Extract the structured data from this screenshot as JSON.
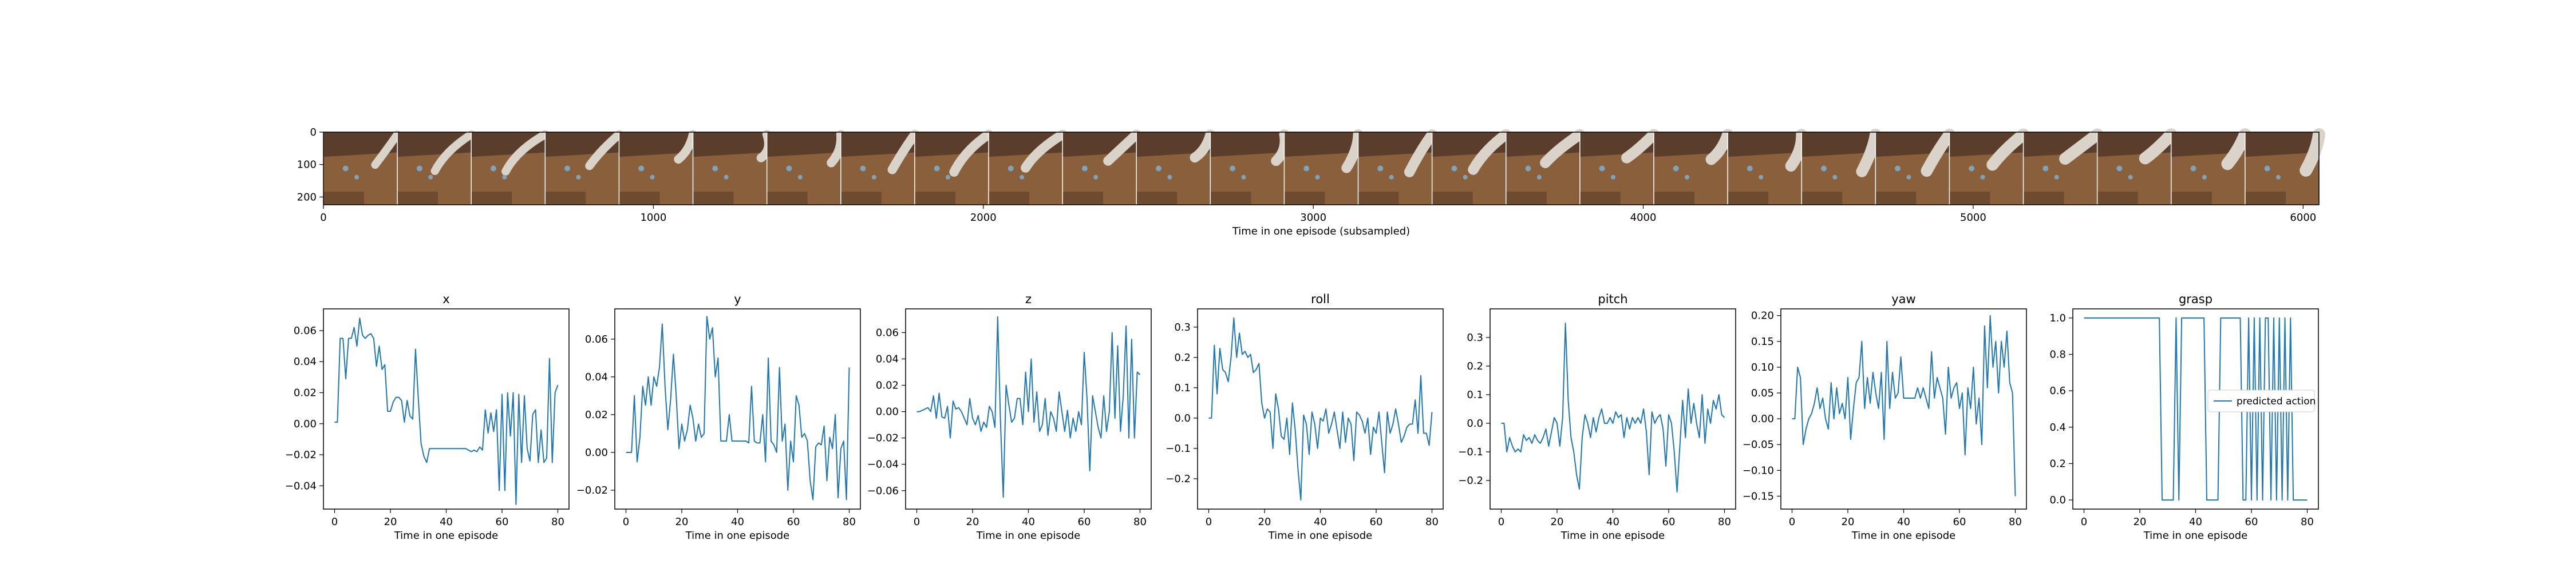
{
  "colors": {
    "series": "#1f77b4",
    "axes": "#000000",
    "background": "#ffffff",
    "legend_border": "#cccccc",
    "filmstrip_wall": "#5a3e2b",
    "filmstrip_table": "#8a5f3c",
    "filmstrip_table_dark": "#6e4a2e",
    "filmstrip_robot": "#d9d3c9",
    "filmstrip_object": "#7fa3b8"
  },
  "image_strip": {
    "type": "image",
    "xlabel": "Time in one episode (subsampled)",
    "x_ticks": [
      "0",
      "1000",
      "2000",
      "3000",
      "4000",
      "5000",
      "6000"
    ],
    "y_ticks": [
      "0",
      "100",
      "200"
    ],
    "xlim": [
      0,
      6048
    ],
    "ylim": [
      224,
      0
    ],
    "frame_count": 27,
    "frame_width": 224
  },
  "chart_data": [
    {
      "type": "line",
      "title": "x",
      "xlabel": "Time in one episode",
      "x_ticks": [
        "0",
        "20",
        "40",
        "60",
        "80"
      ],
      "y_ticks": [
        "−0.04",
        "−0.02",
        "0.00",
        "0.02",
        "0.04",
        "0.06"
      ],
      "y_tick_values": [
        -0.04,
        -0.02,
        0.0,
        0.02,
        0.04,
        0.06
      ],
      "xlim": [
        -4,
        84
      ],
      "ylim": [
        -0.055,
        0.074
      ],
      "values": [
        0.001,
        0.001,
        0.055,
        0.055,
        0.029,
        0.055,
        0.055,
        0.062,
        0.05,
        0.068,
        0.057,
        0.055,
        0.057,
        0.058,
        0.055,
        0.037,
        0.05,
        0.035,
        0.038,
        0.008,
        0.008,
        0.014,
        0.017,
        0.017,
        0.015,
        0.001,
        0.015,
        0.005,
        0.003,
        0.048,
        0.016,
        -0.013,
        -0.021,
        -0.025,
        -0.016,
        -0.016,
        -0.016,
        -0.016,
        -0.016,
        -0.016,
        -0.016,
        -0.016,
        -0.016,
        -0.016,
        -0.016,
        -0.016,
        -0.016,
        -0.016,
        -0.017,
        -0.018,
        -0.017,
        -0.018,
        -0.015,
        -0.017,
        0.009,
        -0.006,
        0.007,
        -0.005,
        0.009,
        -0.043,
        0.019,
        -0.043,
        0.02,
        -0.008,
        0.02,
        -0.052,
        0.019,
        -0.025,
        0.018,
        -0.016,
        -0.024,
        0.006,
        0.009,
        -0.025,
        -0.004,
        -0.025,
        -0.022,
        0.042,
        -0.025,
        0.02,
        0.025
      ]
    },
    {
      "type": "line",
      "title": "y",
      "xlabel": "Time in one episode",
      "x_ticks": [
        "0",
        "20",
        "40",
        "60",
        "80"
      ],
      "y_ticks": [
        "−0.02",
        "0.00",
        "0.02",
        "0.04",
        "0.06"
      ],
      "y_tick_values": [
        -0.02,
        0.0,
        0.02,
        0.04,
        0.06
      ],
      "xlim": [
        -4,
        84
      ],
      "ylim": [
        -0.03,
        0.076
      ],
      "values": [
        0.0,
        0.0,
        0.0,
        0.03,
        -0.005,
        0.008,
        0.035,
        0.025,
        0.04,
        0.025,
        0.04,
        0.035,
        0.045,
        0.068,
        0.035,
        0.012,
        0.028,
        0.052,
        0.03,
        0.002,
        0.015,
        0.006,
        0.012,
        0.025,
        0.018,
        0.006,
        0.015,
        0.008,
        0.01,
        0.072,
        0.06,
        0.066,
        0.04,
        0.05,
        0.006,
        0.006,
        0.006,
        0.02,
        0.006,
        0.006,
        0.006,
        0.006,
        0.006,
        0.006,
        0.005,
        0.035,
        0.006,
        0.005,
        0.005,
        0.02,
        -0.005,
        0.05,
        0.006,
        0.004,
        0.0,
        0.045,
        0.006,
        0.015,
        -0.02,
        0.006,
        -0.005,
        0.03,
        0.025,
        0.008,
        0.01,
        0.006,
        -0.015,
        -0.025,
        0.003,
        0.005,
        0.004,
        0.014,
        -0.015,
        0.008,
        0.002,
        0.02,
        -0.024,
        0.002,
        0.006,
        -0.025,
        0.045
      ]
    },
    {
      "type": "line",
      "title": "z",
      "xlabel": "Time in one episode",
      "x_ticks": [
        "0",
        "20",
        "40",
        "60",
        "80"
      ],
      "y_ticks": [
        "−0.06",
        "−0.04",
        "−0.02",
        "0.00",
        "0.02",
        "0.04",
        "0.06"
      ],
      "y_tick_values": [
        -0.06,
        -0.04,
        -0.02,
        0.0,
        0.02,
        0.04,
        0.06
      ],
      "xlim": [
        -4,
        84
      ],
      "ylim": [
        -0.074,
        0.078
      ],
      "values": [
        0.0,
        0.0,
        0.001,
        0.002,
        0.003,
        0.0,
        0.012,
        -0.005,
        0.014,
        -0.004,
        -0.005,
        0.004,
        -0.02,
        0.008,
        0.002,
        0.003,
        0.0,
        -0.005,
        -0.01,
        0.01,
        -0.005,
        -0.01,
        -0.003,
        -0.015,
        -0.008,
        -0.012,
        0.004,
        0.0,
        -0.012,
        0.072,
        -0.008,
        -0.065,
        0.02,
        0.005,
        -0.008,
        -0.005,
        0.01,
        0.01,
        -0.01,
        0.03,
        0.0,
        0.04,
        -0.008,
        0.015,
        -0.015,
        -0.01,
        0.01,
        -0.018,
        0.0,
        -0.005,
        -0.015,
        0.015,
        0.0,
        -0.015,
        0.001,
        -0.02,
        -0.005,
        -0.015,
        0.0,
        -0.01,
        0.045,
        0.01,
        -0.045,
        0.012,
        0.0,
        -0.012,
        -0.02,
        0.012,
        -0.015,
        0.0,
        0.06,
        -0.005,
        0.05,
        -0.015,
        0.012,
        0.065,
        -0.02,
        0.055,
        -0.02,
        0.03,
        0.028
      ]
    },
    {
      "type": "line",
      "title": "roll",
      "xlabel": "Time in one episode",
      "x_ticks": [
        "0",
        "20",
        "40",
        "60",
        "80"
      ],
      "y_ticks": [
        "−0.2",
        "−0.1",
        "0.0",
        "0.1",
        "0.2",
        "0.3"
      ],
      "y_tick_values": [
        -0.2,
        -0.1,
        0.0,
        0.1,
        0.2,
        0.3
      ],
      "xlim": [
        -4,
        84
      ],
      "ylim": [
        -0.3,
        0.36
      ],
      "values": [
        0.0,
        0.0,
        0.24,
        0.08,
        0.23,
        0.16,
        0.15,
        0.12,
        0.2,
        0.33,
        0.2,
        0.28,
        0.21,
        0.22,
        0.2,
        0.21,
        0.15,
        0.16,
        0.18,
        0.05,
        0.0,
        0.03,
        0.02,
        -0.1,
        0.08,
        0.03,
        -0.06,
        -0.07,
        0.0,
        -0.12,
        0.05,
        -0.04,
        -0.17,
        -0.27,
        0.01,
        -0.02,
        -0.12,
        0.02,
        -0.02,
        -0.1,
        0.0,
        -0.01,
        0.03,
        -0.05,
        -0.02,
        0.02,
        -0.04,
        -0.1,
        0.02,
        -0.08,
        0.0,
        -0.02,
        -0.14,
        0.02,
        0.01,
        -0.01,
        -0.05,
        0.0,
        -0.12,
        -0.03,
        -0.05,
        0.02,
        -0.08,
        -0.18,
        0.02,
        -0.05,
        -0.02,
        0.03,
        -0.02,
        -0.08,
        -0.06,
        -0.03,
        -0.02,
        -0.02,
        0.06,
        -0.05,
        0.14,
        -0.05,
        -0.05,
        -0.09,
        0.02
      ]
    },
    {
      "type": "line",
      "title": "pitch",
      "xlabel": "Time in one episode",
      "x_ticks": [
        "0",
        "20",
        "40",
        "60",
        "80"
      ],
      "y_ticks": [
        "−0.2",
        "−0.1",
        "0.0",
        "0.1",
        "0.2",
        "0.3"
      ],
      "y_tick_values": [
        -0.2,
        -0.1,
        0.0,
        0.1,
        0.2,
        0.3
      ],
      "xlim": [
        -4,
        84
      ],
      "ylim": [
        -0.3,
        0.4
      ],
      "values": [
        0.0,
        0.0,
        -0.1,
        -0.05,
        -0.08,
        -0.1,
        -0.09,
        -0.1,
        -0.04,
        -0.06,
        -0.05,
        -0.07,
        -0.04,
        -0.06,
        -0.07,
        -0.05,
        -0.02,
        -0.08,
        -0.03,
        0.02,
        0.0,
        -0.08,
        0.02,
        0.35,
        0.08,
        -0.05,
        -0.1,
        -0.18,
        -0.23,
        -0.05,
        0.03,
        0.0,
        -0.05,
        0.02,
        -0.03,
        0.02,
        0.05,
        0.0,
        0.0,
        0.02,
        0.0,
        0.04,
        0.02,
        0.03,
        -0.05,
        0.02,
        -0.02,
        0.02,
        0.0,
        0.02,
        0.0,
        0.05,
        -0.03,
        -0.18,
        0.04,
        0.0,
        0.02,
        0.03,
        -0.02,
        -0.15,
        0.03,
        0.0,
        -0.1,
        -0.24,
        -0.08,
        0.08,
        -0.05,
        0.12,
        0.0,
        0.07,
        0.0,
        -0.05,
        0.1,
        -0.07,
        0.05,
        0.0,
        0.08,
        0.05,
        0.1,
        0.03,
        0.02
      ]
    },
    {
      "type": "line",
      "title": "yaw",
      "xlabel": "Time in one episode",
      "x_ticks": [
        "0",
        "20",
        "40",
        "60",
        "80"
      ],
      "y_ticks": [
        "−0.15",
        "−0.10",
        "−0.05",
        "0.00",
        "0.05",
        "0.10",
        "0.15",
        "0.20"
      ],
      "y_tick_values": [
        -0.15,
        -0.1,
        -0.05,
        0.0,
        0.05,
        0.1,
        0.15,
        0.2
      ],
      "xlim": [
        -4,
        84
      ],
      "ylim": [
        -0.175,
        0.213
      ],
      "values": [
        0.0,
        0.0,
        0.1,
        0.08,
        -0.05,
        -0.02,
        0.0,
        0.01,
        0.03,
        0.06,
        0.02,
        0.04,
        0.0,
        -0.02,
        0.07,
        0.0,
        0.06,
        0.01,
        0.03,
        0.0,
        0.08,
        -0.04,
        0.02,
        0.07,
        0.08,
        0.15,
        0.02,
        0.08,
        0.03,
        0.09,
        0.05,
        0.02,
        0.09,
        -0.04,
        0.15,
        0.02,
        0.09,
        0.04,
        0.05,
        0.12,
        0.04,
        0.04,
        0.04,
        0.04,
        0.04,
        0.06,
        0.04,
        0.06,
        0.04,
        0.02,
        0.13,
        0.04,
        0.08,
        0.06,
        0.04,
        -0.03,
        0.1,
        0.04,
        0.06,
        0.07,
        0.02,
        0.05,
        -0.07,
        0.06,
        0.02,
        0.1,
        -0.01,
        0.04,
        -0.05,
        0.18,
        0.06,
        0.2,
        0.1,
        0.15,
        0.05,
        0.15,
        0.1,
        0.17,
        0.07,
        0.05,
        -0.15
      ]
    },
    {
      "type": "line",
      "title": "grasp",
      "xlabel": "Time in one episode",
      "x_ticks": [
        "0",
        "20",
        "40",
        "60",
        "80"
      ],
      "y_ticks": [
        "0.0",
        "0.2",
        "0.4",
        "0.6",
        "0.8",
        "1.0"
      ],
      "y_tick_values": [
        0.0,
        0.2,
        0.4,
        0.6,
        0.8,
        1.0
      ],
      "xlim": [
        -4,
        84
      ],
      "ylim": [
        -0.05,
        1.05
      ],
      "legend": "predicted action",
      "legend_position": "center right",
      "values": [
        1,
        1,
        1,
        1,
        1,
        1,
        1,
        1,
        1,
        1,
        1,
        1,
        1,
        1,
        1,
        1,
        1,
        1,
        1,
        1,
        1,
        1,
        1,
        1,
        1,
        1,
        1,
        1,
        0,
        0,
        0,
        0,
        0,
        1,
        0,
        1,
        1,
        1,
        1,
        1,
        1,
        1,
        1,
        1,
        0,
        0,
        0,
        0,
        0,
        1,
        1,
        1,
        1,
        1,
        1,
        1,
        1,
        0,
        0,
        1,
        0,
        1,
        0,
        1,
        0,
        1,
        1,
        0,
        1,
        0,
        1,
        0,
        1,
        0,
        1,
        0,
        0,
        0,
        0,
        0,
        0
      ]
    }
  ]
}
